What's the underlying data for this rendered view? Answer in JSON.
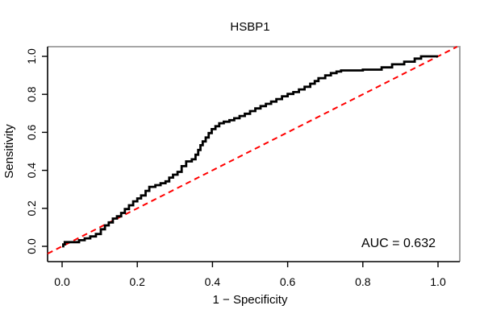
{
  "figure": {
    "background": "#ffffff",
    "box_color_top_right": "#999999",
    "axis_color": "#000000"
  },
  "chart_data": {
    "type": "line",
    "subtype": "roc-curve",
    "title": "HSBP1",
    "xlabel": "1 − Specificity",
    "ylabel": "Sensitivity",
    "annotation": "AUC = 0.632",
    "auc_value": 0.632,
    "xlim": [
      0,
      1
    ],
    "ylim": [
      0,
      1
    ],
    "x_ticks": [
      0.0,
      0.2,
      0.4,
      0.6,
      0.8,
      1.0
    ],
    "y_ticks": [
      0.0,
      0.2,
      0.4,
      0.6,
      0.8,
      1.0
    ],
    "grid": false,
    "legend": "none",
    "series": [
      {
        "name": "ROC curve",
        "style": "step",
        "color": "#000000",
        "line_width": 2.8,
        "points": [
          [
            0,
            0
          ],
          [
            0.003,
            0.01
          ],
          [
            0.007,
            0.022
          ],
          [
            0.045,
            0.032
          ],
          [
            0.06,
            0.042
          ],
          [
            0.075,
            0.052
          ],
          [
            0.09,
            0.065
          ],
          [
            0.103,
            0.09
          ],
          [
            0.114,
            0.11
          ],
          [
            0.124,
            0.126
          ],
          [
            0.135,
            0.146
          ],
          [
            0.146,
            0.158
          ],
          [
            0.157,
            0.176
          ],
          [
            0.167,
            0.196
          ],
          [
            0.178,
            0.216
          ],
          [
            0.189,
            0.237
          ],
          [
            0.2,
            0.252
          ],
          [
            0.21,
            0.268
          ],
          [
            0.222,
            0.292
          ],
          [
            0.232,
            0.313
          ],
          [
            0.248,
            0.322
          ],
          [
            0.262,
            0.332
          ],
          [
            0.275,
            0.342
          ],
          [
            0.285,
            0.362
          ],
          [
            0.295,
            0.377
          ],
          [
            0.307,
            0.392
          ],
          [
            0.318,
            0.422
          ],
          [
            0.33,
            0.447
          ],
          [
            0.345,
            0.458
          ],
          [
            0.355,
            0.482
          ],
          [
            0.362,
            0.507
          ],
          [
            0.368,
            0.532
          ],
          [
            0.374,
            0.552
          ],
          [
            0.382,
            0.573
          ],
          [
            0.39,
            0.596
          ],
          [
            0.398,
            0.617
          ],
          [
            0.408,
            0.632
          ],
          [
            0.418,
            0.648
          ],
          [
            0.43,
            0.656
          ],
          [
            0.445,
            0.664
          ],
          [
            0.458,
            0.674
          ],
          [
            0.472,
            0.686
          ],
          [
            0.486,
            0.698
          ],
          [
            0.5,
            0.712
          ],
          [
            0.514,
            0.726
          ],
          [
            0.528,
            0.738
          ],
          [
            0.542,
            0.75
          ],
          [
            0.556,
            0.762
          ],
          [
            0.57,
            0.775
          ],
          [
            0.585,
            0.79
          ],
          [
            0.6,
            0.802
          ],
          [
            0.615,
            0.812
          ],
          [
            0.63,
            0.826
          ],
          [
            0.645,
            0.84
          ],
          [
            0.66,
            0.856
          ],
          [
            0.672,
            0.87
          ],
          [
            0.682,
            0.885
          ],
          [
            0.7,
            0.9
          ],
          [
            0.715,
            0.912
          ],
          [
            0.73,
            0.92
          ],
          [
            0.742,
            0.926
          ],
          [
            0.8,
            0.93
          ],
          [
            0.85,
            0.942
          ],
          [
            0.878,
            0.958
          ],
          [
            0.91,
            0.972
          ],
          [
            0.938,
            0.988
          ],
          [
            0.955,
            1
          ],
          [
            1,
            1
          ]
        ]
      },
      {
        "name": "chance diagonal",
        "style": "dashed",
        "color": "#FF0000",
        "line_width": 2,
        "points": [
          [
            0,
            0
          ],
          [
            1,
            1
          ]
        ]
      }
    ]
  }
}
